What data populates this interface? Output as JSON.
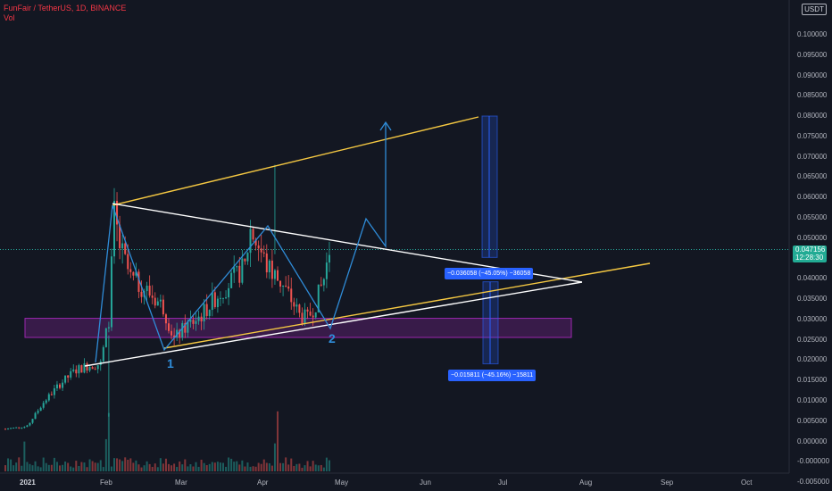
{
  "legend": {
    "symbol_line": "FunFair / TetherUS, 1D, BINANCE",
    "volume_label": "Vol"
  },
  "currency_button": "USDT",
  "price_tag": {
    "price": "0.047156",
    "countdown": "12:28:30"
  },
  "y_axis_ticks": [
    "0.100000",
    "0.095000",
    "0.090000",
    "0.085000",
    "0.080000",
    "0.075000",
    "0.070000",
    "0.065000",
    "0.060000",
    "0.055000",
    "0.050000",
    "0.045000",
    "0.040000",
    "0.035000",
    "0.030000",
    "0.025000",
    "0.020000",
    "0.015000",
    "0.010000",
    "0.005000",
    "0.000000",
    "-0.000000",
    "-0.005000"
  ],
  "x_axis_ticks": [
    "2021",
    "Feb",
    "Mar",
    "Apr",
    "May",
    "Jun",
    "Jul",
    "Aug",
    "Sep",
    "Oct"
  ],
  "measure_labels": {
    "upper": "−0.036058 (−45.05%) −36058",
    "lower": "−0.015811 (−45.16%) −15811"
  },
  "wave_labels": [
    "1",
    "2"
  ],
  "colors": {
    "background": "#131722",
    "up": "#26a69a",
    "down": "#ef5350",
    "trendline": "#f5c842",
    "triangle": "#ffffff",
    "path": "#2f8cd8",
    "zone": "#9c27b0"
  },
  "chart_data": {
    "type": "candlestick",
    "symbol": "FunFair / TetherUS",
    "interval": "1D",
    "exchange": "BINANCE",
    "last_price": 0.047156,
    "y_range": [
      -0.0055,
      0.1035
    ],
    "support_zone": [
      0.0255,
      0.0302
    ],
    "target_high": 0.08,
    "wave_points": [
      {
        "label": "1",
        "date": "Feb 23",
        "price": 0.0221
      },
      {
        "label": "2",
        "date": "Apr 25",
        "price": 0.0292
      }
    ]
  }
}
